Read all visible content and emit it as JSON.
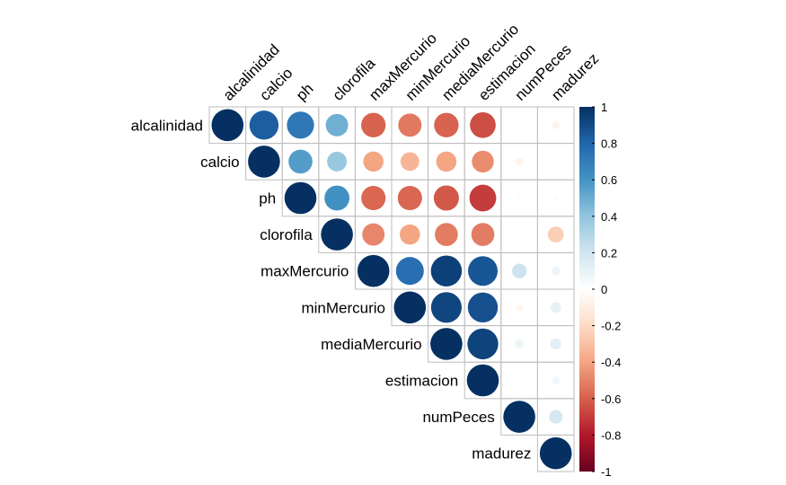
{
  "chart_data": {
    "type": "heatmap",
    "subtype": "correlation-upper-circles",
    "variables": [
      "alcalinidad",
      "calcio",
      "ph",
      "clorofila",
      "maxMercurio",
      "minMercurio",
      "mediaMercurio",
      "estimacion",
      "numPeces",
      "madurez"
    ],
    "matrix": [
      [
        1.0,
        0.83,
        0.72,
        0.49,
        -0.59,
        -0.53,
        -0.59,
        -0.65,
        0.0,
        -0.06
      ],
      [
        0.83,
        1.0,
        0.56,
        0.38,
        -0.4,
        -0.34,
        -0.4,
        -0.47,
        -0.06,
        0.0
      ],
      [
        0.72,
        0.56,
        1.0,
        0.61,
        -0.58,
        -0.58,
        -0.62,
        -0.7,
        -0.02,
        -0.02
      ],
      [
        0.49,
        0.38,
        0.61,
        1.0,
        -0.49,
        -0.4,
        -0.52,
        -0.52,
        0.0,
        -0.25
      ],
      [
        -0.59,
        -0.4,
        -0.58,
        -0.49,
        1.0,
        0.76,
        0.94,
        0.86,
        0.21,
        0.08
      ],
      [
        -0.53,
        -0.34,
        -0.58,
        -0.4,
        0.76,
        1.0,
        0.92,
        0.88,
        -0.05,
        0.11
      ],
      [
        -0.59,
        -0.4,
        -0.62,
        -0.52,
        0.94,
        0.92,
        1.0,
        0.93,
        0.08,
        0.12
      ],
      [
        -0.65,
        -0.47,
        -0.7,
        -0.52,
        0.86,
        0.88,
        0.93,
        1.0,
        0.01,
        0.06
      ],
      [
        0.0,
        -0.06,
        -0.02,
        0.0,
        0.21,
        -0.05,
        0.08,
        0.01,
        1.0,
        0.18
      ],
      [
        -0.06,
        0.0,
        -0.02,
        -0.25,
        0.08,
        0.11,
        0.12,
        0.06,
        0.18,
        1.0
      ]
    ],
    "scale": {
      "min": -1,
      "max": 1,
      "ticks": [
        "1",
        "0.8",
        "0.6",
        "0.4",
        "0.2",
        "0",
        "-0.2",
        "-0.4",
        "-0.6",
        "-0.8",
        "-1"
      ]
    },
    "palette": [
      "#67001F",
      "#B2182B",
      "#D6604D",
      "#F4A582",
      "#FDDBC7",
      "#FFFFFF",
      "#D1E5F0",
      "#92C5DE",
      "#4393C3",
      "#2166AC",
      "#053061"
    ],
    "legend": "right",
    "grid": true
  }
}
